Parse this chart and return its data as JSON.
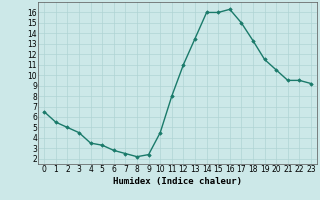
{
  "x": [
    0,
    1,
    2,
    3,
    4,
    5,
    6,
    7,
    8,
    9,
    10,
    11,
    12,
    13,
    14,
    15,
    16,
    17,
    18,
    19,
    20,
    21,
    22,
    23
  ],
  "y": [
    6.5,
    5.5,
    5.0,
    4.5,
    3.5,
    3.3,
    2.8,
    2.5,
    2.2,
    2.4,
    4.5,
    8.0,
    11.0,
    13.5,
    16.0,
    16.0,
    16.3,
    15.0,
    13.3,
    11.5,
    10.5,
    9.5,
    9.5,
    9.2
  ],
  "line_color": "#1a7a6a",
  "marker": "D",
  "marker_size": 1.8,
  "line_width": 1.0,
  "xlabel": "Humidex (Indice chaleur)",
  "xlabel_fontsize": 6.5,
  "xlim": [
    -0.5,
    23.5
  ],
  "ylim": [
    1.5,
    17
  ],
  "yticks": [
    2,
    3,
    4,
    5,
    6,
    7,
    8,
    9,
    10,
    11,
    12,
    13,
    14,
    15,
    16
  ],
  "xticks": [
    0,
    1,
    2,
    3,
    4,
    5,
    6,
    7,
    8,
    9,
    10,
    11,
    12,
    13,
    14,
    15,
    16,
    17,
    18,
    19,
    20,
    21,
    22,
    23
  ],
  "bg_color": "#cce8e8",
  "grid_color": "#b0d4d4",
  "tick_fontsize": 5.5
}
